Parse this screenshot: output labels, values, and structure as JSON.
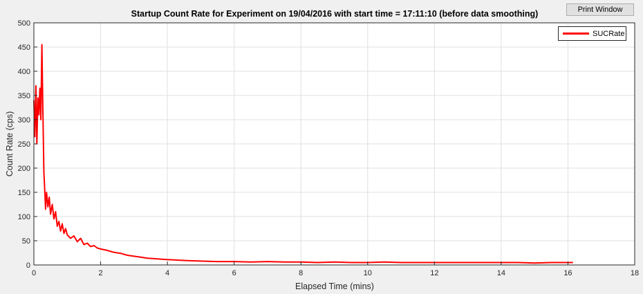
{
  "window": {
    "print_button_label": "Print Window"
  },
  "colors": {
    "line": "#ff0000",
    "axes_bg": "#ffffff",
    "figure_bg": "#f0f0f0",
    "grid": "#e0e0e0"
  },
  "chart_data": {
    "type": "line",
    "title": "Startup Count Rate for Experiment on 19/04/2016 with start time = 17:11:10 (before data smoothing)",
    "xlabel": "Elapsed Time (mins)",
    "ylabel": "Count Rate (cps)",
    "xlim": [
      0,
      18
    ],
    "ylim": [
      0,
      500
    ],
    "xticks": [
      0,
      2,
      4,
      6,
      8,
      10,
      12,
      14,
      16,
      18
    ],
    "yticks": [
      0,
      50,
      100,
      150,
      200,
      250,
      300,
      350,
      400,
      450,
      500
    ],
    "grid": true,
    "legend_position": "top-right",
    "series": [
      {
        "name": "SUCRate",
        "color": "#ff0000",
        "x": [
          0,
          0.03,
          0.06,
          0.09,
          0.12,
          0.15,
          0.18,
          0.21,
          0.24,
          0.27,
          0.3,
          0.32,
          0.35,
          0.38,
          0.42,
          0.46,
          0.5,
          0.55,
          0.6,
          0.65,
          0.7,
          0.75,
          0.8,
          0.85,
          0.9,
          0.95,
          1.0,
          1.1,
          1.2,
          1.3,
          1.4,
          1.5,
          1.6,
          1.7,
          1.8,
          1.9,
          2.0,
          2.2,
          2.4,
          2.6,
          2.8,
          3.0,
          3.2,
          3.4,
          3.6,
          3.8,
          4.0,
          4.3,
          4.6,
          5.0,
          5.5,
          6.0,
          6.5,
          7.0,
          7.5,
          8.0,
          8.5,
          9.0,
          9.5,
          10.0,
          10.5,
          11.0,
          11.5,
          12.0,
          12.5,
          13.0,
          13.5,
          14.0,
          14.5,
          15.0,
          15.5,
          16.0,
          16.15
        ],
        "y": [
          340,
          265,
          370,
          250,
          345,
          310,
          365,
          300,
          455,
          320,
          190,
          165,
          115,
          150,
          120,
          140,
          105,
          125,
          95,
          110,
          80,
          90,
          70,
          85,
          65,
          75,
          62,
          55,
          60,
          48,
          55,
          42,
          45,
          38,
          40,
          35,
          33,
          30,
          26,
          24,
          20,
          18,
          16,
          14,
          13,
          12,
          11,
          10,
          9,
          8,
          7,
          7,
          6,
          7,
          6,
          6,
          5,
          6,
          5,
          5,
          6,
          5,
          5,
          5,
          5,
          5,
          5,
          5,
          5,
          4,
          5,
          5,
          5
        ]
      }
    ]
  }
}
